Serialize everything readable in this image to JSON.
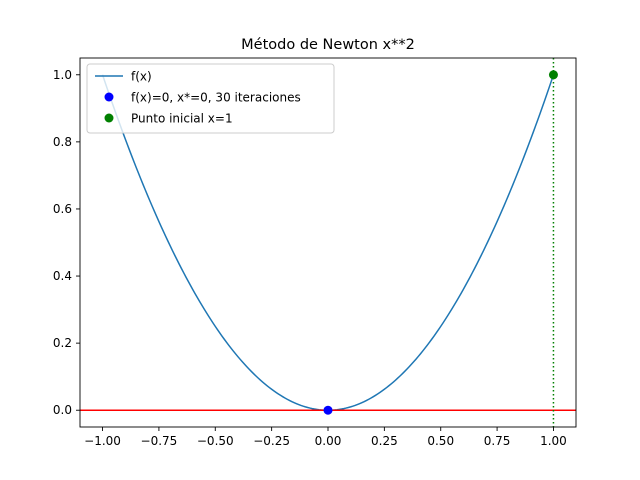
{
  "chart_data": {
    "type": "line",
    "title": "Método de Newton x**2",
    "xlabel": "",
    "ylabel": "",
    "xlim": [
      -1.1,
      1.1
    ],
    "ylim": [
      -0.05,
      1.05
    ],
    "xticks": [
      -1.0,
      -0.75,
      -0.5,
      -0.25,
      0.0,
      0.25,
      0.5,
      0.75,
      1.0
    ],
    "xtick_labels": [
      "−1.00",
      "−0.75",
      "−0.50",
      "−0.25",
      "0.00",
      "0.25",
      "0.50",
      "0.75",
      "1.00"
    ],
    "yticks": [
      0.0,
      0.2,
      0.4,
      0.6,
      0.8,
      1.0
    ],
    "ytick_labels": [
      "0.0",
      "0.2",
      "0.4",
      "0.6",
      "0.8",
      "1.0"
    ],
    "grid": false,
    "legend_position": "top-left",
    "series": [
      {
        "name": "f(x)",
        "kind": "line",
        "color": "#1f77b4",
        "function": "x**2",
        "x_range": [
          -1.0,
          1.0
        ]
      },
      {
        "name": "f(x)=0, x*=0, 30 iteraciones",
        "kind": "point",
        "color": "#0000ff",
        "x": [
          0.0
        ],
        "y": [
          0.0
        ]
      },
      {
        "name": "Punto inicial x=1",
        "kind": "point",
        "color": "#008000",
        "x": [
          1.0
        ],
        "y": [
          1.0
        ]
      }
    ],
    "reference_lines": [
      {
        "orientation": "horizontal",
        "value": 0.0,
        "color": "#ff0000",
        "style": "solid"
      },
      {
        "orientation": "vertical",
        "value": 1.0,
        "color": "#008000",
        "style": "dotted"
      }
    ]
  }
}
